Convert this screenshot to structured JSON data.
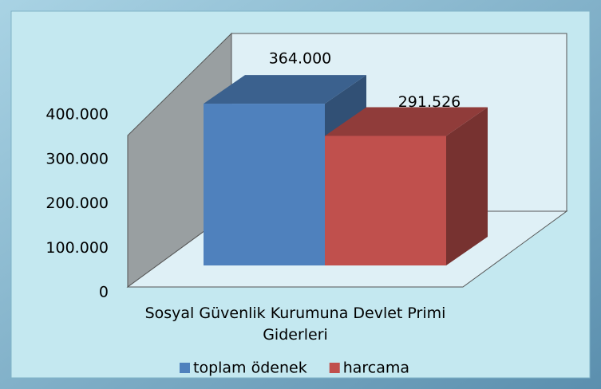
{
  "chart_data": {
    "type": "bar3d",
    "categories": [
      "Sosyal Güvenlik Kurumuna Devlet Primi Giderleri"
    ],
    "series": [
      {
        "name": "toplam ödenek",
        "color": "#4f81bd",
        "values": [
          364000
        ],
        "value_labels": [
          "364.000"
        ]
      },
      {
        "name": "harcama",
        "color": "#c0504d",
        "values": [
          291526
        ],
        "value_labels": [
          "291.526"
        ]
      }
    ],
    "ylim": [
      0,
      400000
    ],
    "yticks": [
      0,
      {
        "value": 100000,
        "label": "100.000"
      },
      {
        "value": 200000,
        "label": "200.000"
      },
      {
        "value": 300000,
        "label": "300.000"
      },
      {
        "value": 400000,
        "label": "400.000"
      }
    ],
    "legend": "bottom"
  }
}
